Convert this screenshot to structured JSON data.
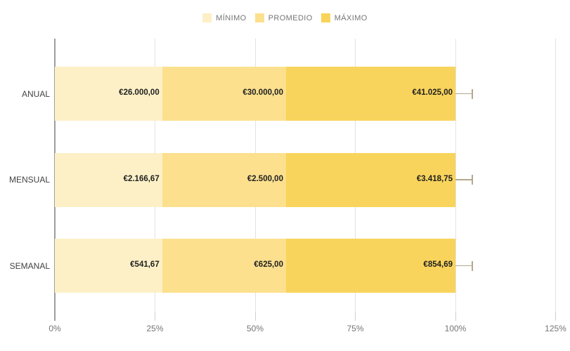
{
  "chart_data": {
    "type": "bar",
    "orientation": "horizontal",
    "stacked": "percent",
    "title": "",
    "categories": [
      "ANUAL",
      "MENSUAL",
      "SEMANAL"
    ],
    "series": [
      {
        "name": "MÍNIMO",
        "color": "#fdf0c7",
        "values": [
          26000,
          2166.67,
          541.67
        ],
        "value_labels": [
          "€26.000,00",
          "€2.166,67",
          "€541,67"
        ]
      },
      {
        "name": "PROMEDIO",
        "color": "#fce08e",
        "values": [
          30000,
          2500,
          625
        ],
        "value_labels": [
          "€30.000,00",
          "€2.500,00",
          "€625,00"
        ]
      },
      {
        "name": "MÁXIMO",
        "color": "#f9d45c",
        "values": [
          41025,
          3418.75,
          854.69
        ],
        "value_labels": [
          "€41.025,00",
          "€3.418,75",
          "€854,69"
        ]
      }
    ],
    "x_axis": {
      "tick_labels": [
        "0%",
        "25%",
        "50%",
        "75%",
        "100%",
        "125%"
      ],
      "min": 0,
      "max": 125,
      "unit": "%"
    },
    "legend": {
      "position": "top",
      "items": [
        "MÍNIMO",
        "PROMEDIO",
        "MÁXIMO"
      ]
    },
    "error_bars": {
      "type": "percent",
      "value": 10
    },
    "grid": true
  },
  "colors": {
    "background": "#ffffff",
    "grid": "#e3e3e3",
    "axis": "#9e9e9e",
    "tick": "#cfcfcf",
    "legend_text": "#757575",
    "axis_text": "#757575",
    "category_text": "#424242",
    "value_text": "#1f1f1f",
    "error_bar": "#b3a78f"
  }
}
